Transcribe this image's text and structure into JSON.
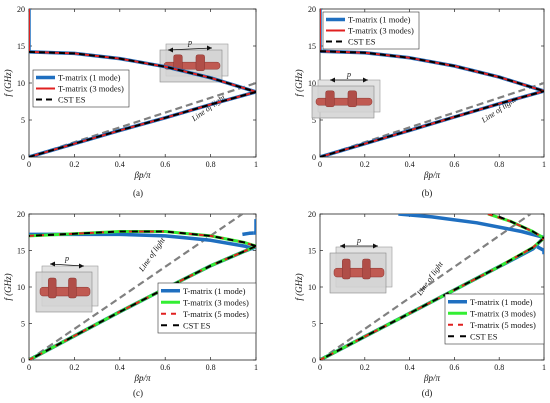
{
  "chart_data": [
    {
      "type": "line",
      "caption": "(a)",
      "xlabel": "βp/π",
      "ylabel": "f (GHz)",
      "xlim": [
        0,
        1
      ],
      "ylim": [
        0,
        20
      ],
      "xticks": [
        "0",
        "0.2",
        "0.4",
        "0.6",
        "0.8",
        "1"
      ],
      "yticks": [
        "0",
        "5",
        "10",
        "15",
        "20"
      ],
      "legend_position": "middle-left",
      "annotation_light": "Line of light",
      "annotation_period": "p",
      "light_line": {
        "x": [
          0,
          1
        ],
        "y": [
          0,
          10
        ]
      },
      "series": [
        {
          "name": "T-matrix (1 mode)",
          "color": "#1f6fc0",
          "width": 3.5,
          "dash": "",
          "segments": [
            {
              "x": [
                0,
                0
              ],
              "y": [
                14.2,
                20
              ]
            },
            {
              "x": [
                0,
                0.2,
                0.4,
                0.6,
                0.8,
                1
              ],
              "y": [
                14.2,
                14.0,
                13.3,
                12.2,
                10.7,
                8.8
              ]
            },
            {
              "x": [
                0,
                0.2,
                0.4,
                0.6,
                0.8,
                1
              ],
              "y": [
                0,
                1.8,
                3.6,
                5.3,
                7.1,
                8.8
              ]
            }
          ]
        },
        {
          "name": "T-matrix (3 modes)",
          "color": "#e02020",
          "width": 2,
          "dash": "",
          "segments": [
            {
              "x": [
                0,
                0
              ],
              "y": [
                14.2,
                20
              ]
            },
            {
              "x": [
                0,
                0.2,
                0.4,
                0.6,
                0.8,
                1
              ],
              "y": [
                14.2,
                14.0,
                13.3,
                12.2,
                10.7,
                8.8
              ]
            },
            {
              "x": [
                0,
                0.2,
                0.4,
                0.6,
                0.8,
                1
              ],
              "y": [
                0,
                1.8,
                3.6,
                5.3,
                7.1,
                8.8
              ]
            }
          ]
        },
        {
          "name": "CST ES",
          "color": "#000000",
          "width": 2,
          "dash": "6,4",
          "segments": [
            {
              "x": [
                0,
                0.2,
                0.4,
                0.6,
                0.8,
                1
              ],
              "y": [
                14.2,
                14.0,
                13.3,
                12.2,
                10.7,
                8.8
              ]
            },
            {
              "x": [
                0,
                0.2,
                0.4,
                0.6,
                0.8,
                1
              ],
              "y": [
                0,
                1.8,
                3.6,
                5.3,
                7.1,
                8.8
              ]
            }
          ]
        }
      ]
    },
    {
      "type": "line",
      "caption": "(b)",
      "xlabel": "βp/π",
      "ylabel": "f (GHz)",
      "xlim": [
        0,
        1
      ],
      "ylim": [
        0,
        20
      ],
      "xticks": [
        "0",
        "0.2",
        "0.4",
        "0.6",
        "0.8",
        "1"
      ],
      "yticks": [
        "0",
        "5",
        "10",
        "15",
        "20"
      ],
      "legend_position": "top-left",
      "annotation_light": "Line of light",
      "annotation_period": "p",
      "light_line": {
        "x": [
          0,
          1
        ],
        "y": [
          0,
          10
        ]
      },
      "series": [
        {
          "name": "T-matrix (1 mode)",
          "color": "#1f6fc0",
          "width": 3.5,
          "dash": "",
          "segments": [
            {
              "x": [
                0,
                0
              ],
              "y": [
                14.3,
                20
              ]
            },
            {
              "x": [
                0,
                0.2,
                0.4,
                0.6,
                0.8,
                1
              ],
              "y": [
                14.3,
                14.1,
                13.4,
                12.3,
                10.8,
                8.9
              ]
            },
            {
              "x": [
                0,
                0.2,
                0.4,
                0.6,
                0.8,
                1
              ],
              "y": [
                0,
                1.8,
                3.6,
                5.4,
                7.2,
                8.9
              ]
            }
          ]
        },
        {
          "name": "T-matrix (3 modes)",
          "color": "#e02020",
          "width": 2,
          "dash": "",
          "segments": [
            {
              "x": [
                0,
                0
              ],
              "y": [
                14.3,
                20
              ]
            },
            {
              "x": [
                0,
                0.2,
                0.4,
                0.6,
                0.8,
                1
              ],
              "y": [
                14.3,
                14.1,
                13.4,
                12.3,
                10.8,
                8.9
              ]
            },
            {
              "x": [
                0,
                0.2,
                0.4,
                0.6,
                0.8,
                1
              ],
              "y": [
                0,
                1.8,
                3.6,
                5.4,
                7.2,
                8.9
              ]
            }
          ]
        },
        {
          "name": "CST ES",
          "color": "#000000",
          "width": 2,
          "dash": "6,4",
          "segments": [
            {
              "x": [
                0,
                0.2,
                0.4,
                0.6,
                0.8,
                1
              ],
              "y": [
                14.3,
                14.1,
                13.4,
                12.3,
                10.8,
                8.9
              ]
            },
            {
              "x": [
                0,
                0.2,
                0.4,
                0.6,
                0.8,
                1
              ],
              "y": [
                0,
                1.8,
                3.6,
                5.4,
                7.2,
                8.9
              ]
            }
          ]
        }
      ]
    },
    {
      "type": "line",
      "caption": "(c)",
      "xlabel": "βp/π",
      "ylabel": "f (GHz)",
      "xlim": [
        0,
        1
      ],
      "ylim": [
        0,
        20
      ],
      "xticks": [
        "0",
        "0.2",
        "0.4",
        "0.6",
        "0.8",
        "1"
      ],
      "yticks": [
        "0",
        "5",
        "10",
        "15",
        "20"
      ],
      "legend_position": "bottom-right",
      "annotation_light": "Line of light",
      "annotation_period": "p",
      "light_line": {
        "x": [
          0,
          0.94
        ],
        "y": [
          0,
          20
        ]
      },
      "series": [
        {
          "name": "T-matrix (1 mode)",
          "color": "#1f6fc0",
          "width": 3.5,
          "dash": "",
          "segments": [
            {
              "x": [
                0,
                0.2,
                0.4,
                0.6,
                0.8,
                0.95,
                0.99
              ],
              "y": [
                17.2,
                17.2,
                17.2,
                17.0,
                16.4,
                15.6,
                15.2
              ]
            },
            {
              "x": [
                0.99,
                1,
                1
              ],
              "y": [
                17.4,
                17.4,
                19.3
              ]
            },
            {
              "x": [
                0.94,
                0.97,
                0.99
              ],
              "y": [
                17.2,
                17.35,
                17.4
              ]
            },
            {
              "x": [
                0,
                0.2,
                0.4,
                0.6,
                0.8,
                0.95,
                1
              ],
              "y": [
                0,
                3.3,
                6.6,
                9.8,
                12.9,
                14.9,
                15.5
              ]
            }
          ]
        },
        {
          "name": "T-matrix (3 modes)",
          "color": "#33ee33",
          "width": 3,
          "dash": "",
          "segments": [
            {
              "x": [
                0,
                0.2,
                0.4,
                0.6,
                0.8,
                0.95,
                1
              ],
              "y": [
                17.0,
                17.3,
                17.6,
                17.6,
                17.0,
                16.1,
                15.6
              ]
            },
            {
              "x": [
                0,
                0.2,
                0.4,
                0.6,
                0.8,
                0.95,
                1
              ],
              "y": [
                0,
                3.3,
                6.6,
                9.8,
                12.9,
                14.9,
                15.6
              ]
            }
          ]
        },
        {
          "name": "T-matrix (5 modes)",
          "color": "#e02020",
          "width": 2,
          "dash": "5,5",
          "segments": [
            {
              "x": [
                0,
                0.2,
                0.4,
                0.6,
                0.8,
                0.95,
                1
              ],
              "y": [
                17.0,
                17.3,
                17.6,
                17.6,
                17.0,
                16.1,
                15.6
              ]
            },
            {
              "x": [
                0,
                0.2,
                0.4,
                0.6,
                0.8,
                0.95,
                1
              ],
              "y": [
                0,
                3.3,
                6.6,
                9.8,
                12.9,
                14.9,
                15.6
              ]
            }
          ]
        },
        {
          "name": "CST ES",
          "color": "#000000",
          "width": 2,
          "dash": "6,6",
          "dash_offset": 5,
          "segments": [
            {
              "x": [
                0,
                0.2,
                0.4,
                0.6,
                0.8,
                0.95,
                1
              ],
              "y": [
                17.0,
                17.3,
                17.6,
                17.6,
                17.0,
                16.1,
                15.6
              ]
            },
            {
              "x": [
                0,
                0.2,
                0.4,
                0.6,
                0.8,
                0.95,
                1
              ],
              "y": [
                0,
                3.3,
                6.6,
                9.8,
                12.9,
                14.9,
                15.6
              ]
            }
          ]
        }
      ]
    },
    {
      "type": "line",
      "caption": "(d)",
      "xlabel": "βp/π",
      "ylabel": "f (GHz)",
      "xlim": [
        0,
        1
      ],
      "ylim": [
        0,
        20
      ],
      "xticks": [
        "0",
        "0.2",
        "0.4",
        "0.6",
        "0.8",
        "1"
      ],
      "yticks": [
        "0",
        "5",
        "10",
        "15",
        "20"
      ],
      "legend_position": "bottom-right",
      "annotation_light": "Line of light",
      "annotation_period": "p",
      "light_line": {
        "x": [
          0,
          0.94
        ],
        "y": [
          0,
          20
        ]
      },
      "series": [
        {
          "name": "T-matrix (1 mode)",
          "color": "#1f6fc0",
          "width": 3.5,
          "dash": "",
          "segments": [
            {
              "x": [
                0.35,
                0.5,
                0.7,
                0.9,
                1
              ],
              "y": [
                20,
                19.6,
                18.8,
                17.6,
                16.8
              ]
            },
            {
              "x": [
                0.97,
                1,
                1
              ],
              "y": [
                15.5,
                15.0,
                14.5
              ]
            },
            {
              "x": [
                0,
                0.2,
                0.4,
                0.6,
                0.8,
                0.95,
                1
              ],
              "y": [
                0,
                3.2,
                6.4,
                9.6,
                12.8,
                15.2,
                16.8
              ]
            }
          ]
        },
        {
          "name": "T-matrix (3 modes)",
          "color": "#33ee33",
          "width": 3,
          "dash": "",
          "segments": [
            {
              "x": [
                0.75,
                0.85,
                0.95,
                1
              ],
              "y": [
                20,
                19.0,
                17.6,
                16.7
              ]
            },
            {
              "x": [
                0,
                0.2,
                0.4,
                0.6,
                0.8,
                0.95,
                1
              ],
              "y": [
                0,
                3.2,
                6.4,
                9.6,
                12.8,
                15.4,
                16.7
              ]
            }
          ]
        },
        {
          "name": "T-matrix (5 modes)",
          "color": "#e02020",
          "width": 2,
          "dash": "5,5",
          "segments": [
            {
              "x": [
                0.75,
                0.85,
                0.95,
                1
              ],
              "y": [
                20,
                19.0,
                17.6,
                16.7
              ]
            },
            {
              "x": [
                0,
                0.2,
                0.4,
                0.6,
                0.8,
                0.95,
                1
              ],
              "y": [
                0,
                3.2,
                6.4,
                9.6,
                12.8,
                15.4,
                16.7
              ]
            }
          ]
        },
        {
          "name": "CST ES",
          "color": "#000000",
          "width": 2,
          "dash": "6,6",
          "dash_offset": 5,
          "segments": [
            {
              "x": [
                0.77,
                0.85,
                0.95,
                1
              ],
              "y": [
                20,
                19.0,
                17.6,
                16.7
              ]
            },
            {
              "x": [
                0,
                0.2,
                0.4,
                0.6,
                0.8,
                0.95,
                1
              ],
              "y": [
                0,
                3.2,
                6.4,
                9.6,
                12.8,
                15.4,
                16.7
              ]
            }
          ]
        }
      ]
    }
  ]
}
